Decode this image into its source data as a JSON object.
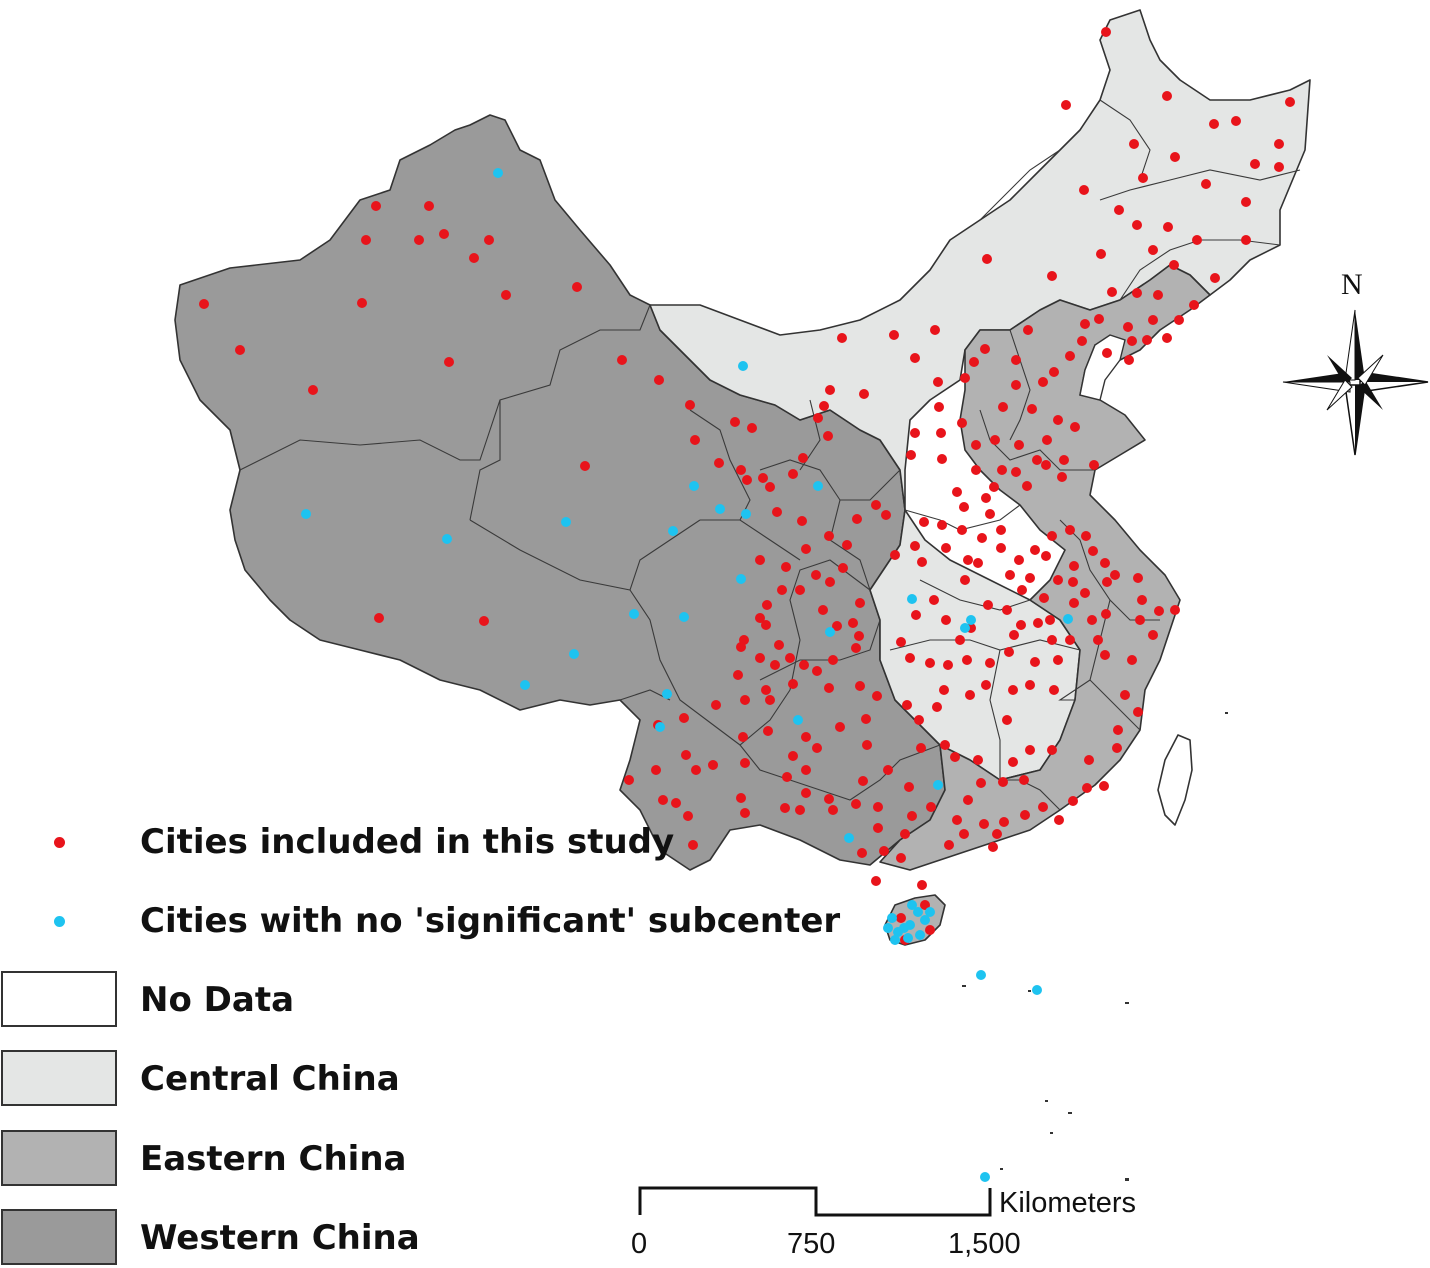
{
  "legend": {
    "items": [
      {
        "label": "Cities included in this study",
        "kind": "dot",
        "color": "#e8141b"
      },
      {
        "label": "Cities with no 'significant' subcenter",
        "kind": "dot",
        "color": "#1ec3f0"
      },
      {
        "label": "No Data",
        "kind": "area",
        "color": "#ffffff"
      },
      {
        "label": "Central China",
        "kind": "area",
        "color": "#e4e6e5"
      },
      {
        "label": "Eastern China",
        "kind": "area",
        "color": "#b2b2b2"
      },
      {
        "label": "Western China",
        "kind": "area",
        "color": "#9a9a9a"
      }
    ]
  },
  "scale_bar": {
    "ticks": [
      "0",
      "750",
      "1,500"
    ],
    "unit": "Kilometers"
  },
  "north_arrow": {
    "label": "N"
  },
  "regions": {
    "central_color": "#e4e6e5",
    "eastern_color": "#b2b2b2",
    "western_color": "#9a9a9a"
  },
  "city_markers": {
    "included_color": "#e8141b",
    "no_subcenter_color": "#1ec3f0"
  }
}
